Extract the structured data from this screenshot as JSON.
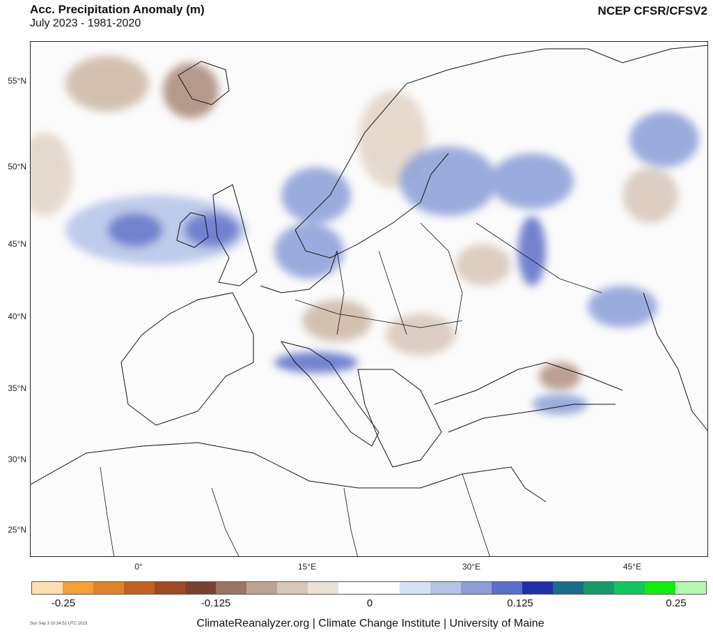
{
  "header": {
    "title": "Acc. Precipitation Anomaly (m)",
    "subtitle": "July 2023 - 1981-2020",
    "source": "NCEP CFSR/CFSV2"
  },
  "axes": {
    "lat_labels": [
      "55°N",
      "50°N",
      "45°N",
      "40°N",
      "35°N",
      "30°N",
      "25°N"
    ],
    "lon_labels": [
      "0°",
      "15°E",
      "30°E",
      "45°E"
    ]
  },
  "colorbar": {
    "colors": [
      "#fde0b2",
      "#f5a032",
      "#e0822a",
      "#c4601f",
      "#9f4b22",
      "#784232",
      "#9a7564",
      "#bca292",
      "#d8c6b9",
      "#ece1d6",
      "#ffffff",
      "#ffffff",
      "#d6e2f4",
      "#b3c4e8",
      "#8a9fd8",
      "#5b6ec8",
      "#2030a8",
      "#1a6c8a",
      "#169a6a",
      "#10c85a",
      "#10ee10",
      "#b6f7b0"
    ],
    "tick_labels": [
      "-0.25",
      "-0.125",
      "0",
      "0.125",
      "0.25"
    ]
  },
  "footer": {
    "credit": "ClimateReanalyzer.org | Climate Change Institute | University of Maine",
    "timestamp": "Sun Sep  3 10:34:52 UTC 2023"
  }
}
